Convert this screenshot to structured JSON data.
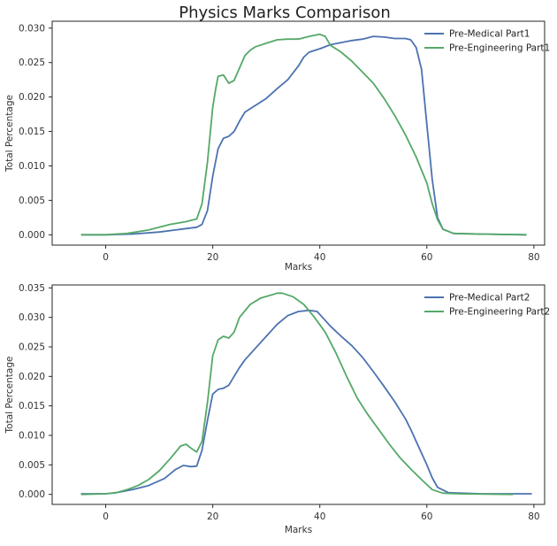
{
  "title": "Physics Marks Comparison",
  "colors": {
    "blue": "#4c72b0",
    "green": "#55a868",
    "axis": "#262626"
  },
  "chart_data": [
    {
      "type": "line",
      "xlabel": "Marks",
      "ylabel": "Total Percentage",
      "xlim": [
        -10,
        82
      ],
      "ylim": [
        -0.0015,
        0.031
      ],
      "xticks": [
        0,
        20,
        40,
        60,
        80
      ],
      "yticks": [
        0.0,
        0.005,
        0.01,
        0.015,
        0.02,
        0.025,
        0.03
      ],
      "ytick_labels": [
        "0.000",
        "0.005",
        "0.010",
        "0.015",
        "0.020",
        "0.025",
        "0.030"
      ],
      "legend_position": "top-right",
      "grid": false,
      "series": [
        {
          "name": "Pre-Medical Part1",
          "color": "#4c72b0",
          "points": [
            [
              -4.5,
              0.0
            ],
            [
              0,
              0.0
            ],
            [
              5,
              0.0001
            ],
            [
              10,
              0.0004
            ],
            [
              13,
              0.0007
            ],
            [
              15,
              0.0009
            ],
            [
              17,
              0.0011
            ],
            [
              18,
              0.0015
            ],
            [
              19,
              0.0035
            ],
            [
              20,
              0.0085
            ],
            [
              21,
              0.0125
            ],
            [
              22,
              0.014
            ],
            [
              23,
              0.0143
            ],
            [
              24,
              0.015
            ],
            [
              25,
              0.0165
            ],
            [
              26,
              0.0178
            ],
            [
              28,
              0.0188
            ],
            [
              30,
              0.0198
            ],
            [
              32,
              0.0212
            ],
            [
              34,
              0.0225
            ],
            [
              36,
              0.0245
            ],
            [
              37,
              0.0258
            ],
            [
              38,
              0.0265
            ],
            [
              40,
              0.027
            ],
            [
              42,
              0.0276
            ],
            [
              44,
              0.0279
            ],
            [
              46,
              0.0282
            ],
            [
              48,
              0.0284
            ],
            [
              50,
              0.0288
            ],
            [
              52,
              0.0287
            ],
            [
              54,
              0.0285
            ],
            [
              56,
              0.0285
            ],
            [
              57,
              0.0283
            ],
            [
              58,
              0.0272
            ],
            [
              59,
              0.024
            ],
            [
              60,
              0.016
            ],
            [
              61,
              0.008
            ],
            [
              62,
              0.0025
            ],
            [
              63,
              0.0008
            ],
            [
              65,
              0.0002
            ],
            [
              70,
              0.0001
            ],
            [
              78.5,
              0.0
            ]
          ]
        },
        {
          "name": "Pre-Engineering Part1",
          "color": "#55a868",
          "points": [
            [
              -4.5,
              0.0
            ],
            [
              0,
              0.0
            ],
            [
              4,
              0.0002
            ],
            [
              8,
              0.0007
            ],
            [
              12,
              0.0015
            ],
            [
              15,
              0.0019
            ],
            [
              17,
              0.0023
            ],
            [
              18,
              0.0045
            ],
            [
              19,
              0.0105
            ],
            [
              20,
              0.0185
            ],
            [
              20.5,
              0.021
            ],
            [
              21,
              0.023
            ],
            [
              22,
              0.0232
            ],
            [
              23,
              0.022
            ],
            [
              24,
              0.0224
            ],
            [
              25,
              0.0242
            ],
            [
              26,
              0.026
            ],
            [
              27,
              0.0268
            ],
            [
              28,
              0.0273
            ],
            [
              30,
              0.0278
            ],
            [
              32,
              0.0283
            ],
            [
              34,
              0.0284
            ],
            [
              36,
              0.0284
            ],
            [
              38,
              0.0288
            ],
            [
              40,
              0.0291
            ],
            [
              41,
              0.0288
            ],
            [
              42,
              0.0275
            ],
            [
              44,
              0.0265
            ],
            [
              46,
              0.0252
            ],
            [
              48,
              0.0236
            ],
            [
              50,
              0.022
            ],
            [
              52,
              0.0198
            ],
            [
              54,
              0.0173
            ],
            [
              56,
              0.0145
            ],
            [
              58,
              0.0113
            ],
            [
              60,
              0.0075
            ],
            [
              61,
              0.0045
            ],
            [
              62,
              0.0022
            ],
            [
              63,
              0.0008
            ],
            [
              65,
              0.0002
            ],
            [
              70,
              0.0001
            ],
            [
              78.5,
              0.0
            ]
          ]
        }
      ]
    },
    {
      "type": "line",
      "xlabel": "Marks",
      "ylabel": "Total Percentage",
      "xlim": [
        -10,
        82
      ],
      "ylim": [
        -0.0017,
        0.0355
      ],
      "xticks": [
        0,
        20,
        40,
        60,
        80
      ],
      "yticks": [
        0.0,
        0.005,
        0.01,
        0.015,
        0.02,
        0.025,
        0.03,
        0.035
      ],
      "ytick_labels": [
        "0.000",
        "0.005",
        "0.010",
        "0.015",
        "0.020",
        "0.025",
        "0.030",
        "0.035"
      ],
      "legend_position": "top-right",
      "grid": false,
      "series": [
        {
          "name": "Pre-Medical Part2",
          "color": "#4c72b0",
          "points": [
            [
              -4.5,
              0.0001
            ],
            [
              0,
              0.0001
            ],
            [
              2,
              0.0003
            ],
            [
              5,
              0.0008
            ],
            [
              8,
              0.0015
            ],
            [
              11,
              0.0027
            ],
            [
              13,
              0.0042
            ],
            [
              14.5,
              0.0049
            ],
            [
              16,
              0.0047
            ],
            [
              17,
              0.0048
            ],
            [
              18,
              0.0075
            ],
            [
              19,
              0.0125
            ],
            [
              20,
              0.017
            ],
            [
              21,
              0.0178
            ],
            [
              22,
              0.018
            ],
            [
              23,
              0.0185
            ],
            [
              24,
              0.02
            ],
            [
              25,
              0.0215
            ],
            [
              26,
              0.0228
            ],
            [
              28,
              0.0248
            ],
            [
              30,
              0.0268
            ],
            [
              32,
              0.0288
            ],
            [
              34,
              0.0303
            ],
            [
              36,
              0.031
            ],
            [
              38,
              0.0312
            ],
            [
              39.5,
              0.031
            ],
            [
              40,
              0.0305
            ],
            [
              42,
              0.0285
            ],
            [
              44,
              0.0268
            ],
            [
              46,
              0.0252
            ],
            [
              48,
              0.0232
            ],
            [
              50,
              0.0208
            ],
            [
              52,
              0.0183
            ],
            [
              54,
              0.0157
            ],
            [
              56,
              0.0128
            ],
            [
              57,
              0.011
            ],
            [
              58,
              0.009
            ],
            [
              60,
              0.005
            ],
            [
              61,
              0.0028
            ],
            [
              62,
              0.0012
            ],
            [
              64,
              0.0003
            ],
            [
              70,
              0.0001
            ],
            [
              79.5,
              0.0001
            ]
          ]
        },
        {
          "name": "Pre-Engineering Part2",
          "color": "#55a868",
          "points": [
            [
              -4.5,
              0.0
            ],
            [
              0,
              0.0001
            ],
            [
              2,
              0.0003
            ],
            [
              4,
              0.0008
            ],
            [
              6,
              0.0015
            ],
            [
              8,
              0.0025
            ],
            [
              10,
              0.004
            ],
            [
              12,
              0.006
            ],
            [
              14,
              0.0082
            ],
            [
              15,
              0.0085
            ],
            [
              16,
              0.0078
            ],
            [
              17,
              0.0072
            ],
            [
              18,
              0.009
            ],
            [
              19,
              0.0155
            ],
            [
              20,
              0.0235
            ],
            [
              21,
              0.0262
            ],
            [
              22,
              0.0268
            ],
            [
              23,
              0.0265
            ],
            [
              24,
              0.0275
            ],
            [
              25,
              0.03
            ],
            [
              27,
              0.0322
            ],
            [
              29,
              0.0333
            ],
            [
              31,
              0.0338
            ],
            [
              32,
              0.0341
            ],
            [
              33,
              0.0341
            ],
            [
              35,
              0.0335
            ],
            [
              37,
              0.0322
            ],
            [
              39,
              0.03
            ],
            [
              41,
              0.0275
            ],
            [
              43,
              0.024
            ],
            [
              45,
              0.02
            ],
            [
              47,
              0.0163
            ],
            [
              49,
              0.0135
            ],
            [
              51,
              0.011
            ],
            [
              53,
              0.0085
            ],
            [
              55,
              0.0062
            ],
            [
              57,
              0.0043
            ],
            [
              59,
              0.0025
            ],
            [
              61,
              0.0008
            ],
            [
              63,
              0.0002
            ],
            [
              66,
              0.0001
            ],
            [
              76,
              0.0
            ]
          ]
        }
      ]
    }
  ]
}
